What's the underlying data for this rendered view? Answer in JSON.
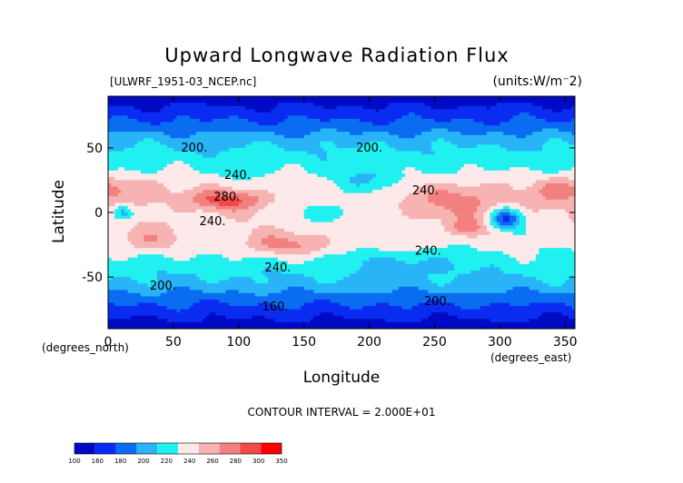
{
  "chart_data": {
    "type": "contour",
    "title": "Upward Longwave Radiation Flux",
    "source_label": "[ULWRF_1951-03_NCEP.nc]",
    "units_label": "(units:W/m⁻2)",
    "xlabel": "Longitude",
    "ylabel": "Latitude",
    "x_unit_label": "(degrees_east)",
    "y_unit_label": "(degrees_north)",
    "xlim": [
      0,
      357.5
    ],
    "ylim": [
      -90,
      90
    ],
    "x_ticks": [
      0,
      50,
      100,
      150,
      200,
      250,
      300,
      350
    ],
    "y_ticks": [
      -50,
      0,
      50
    ],
    "contour_interval_text": "CONTOUR INTERVAL = 2.000E+01",
    "contour_labels": [
      {
        "text": "200.",
        "lon": 66,
        "lat": 50
      },
      {
        "text": "200.",
        "lon": 200,
        "lat": 50
      },
      {
        "text": "240.",
        "lon": 99,
        "lat": 29
      },
      {
        "text": "280.",
        "lon": 91,
        "lat": 12
      },
      {
        "text": "240.",
        "lon": 80,
        "lat": -7
      },
      {
        "text": "240.",
        "lon": 243,
        "lat": 17
      },
      {
        "text": "240.",
        "lon": 245,
        "lat": -30
      },
      {
        "text": "240.",
        "lon": 130,
        "lat": -43
      },
      {
        "text": "200.",
        "lon": 42,
        "lat": -57
      },
      {
        "text": "200.",
        "lon": 252,
        "lat": -69
      },
      {
        "text": "160.",
        "lon": 128,
        "lat": -73
      }
    ],
    "colorbar": {
      "labels": [
        "100",
        "160",
        "180",
        "200",
        "220",
        "240",
        "260",
        "280",
        "300",
        "350"
      ],
      "colors": [
        "#000ac4",
        "#0a2cf0",
        "#0a6cf0",
        "#28b4f7",
        "#20f0f0",
        "#fde9e9",
        "#f7b2b2",
        "#f2807f",
        "#f24848",
        "#ff0000"
      ]
    }
  }
}
